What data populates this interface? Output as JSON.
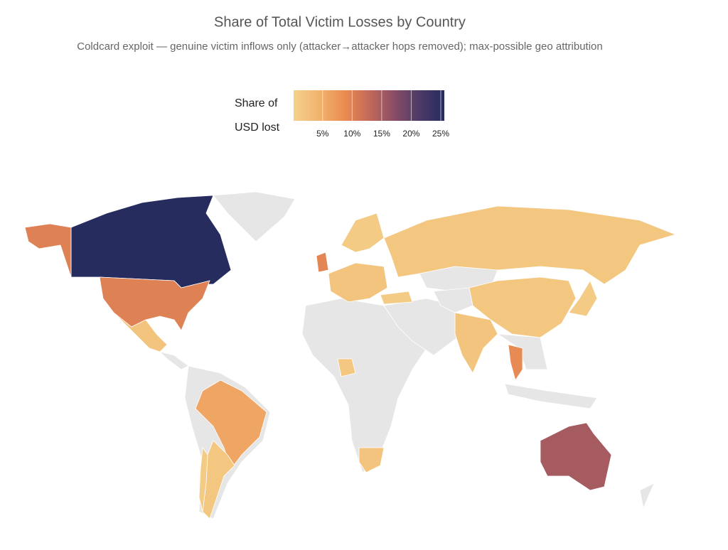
{
  "chart_data": {
    "type": "choropleth",
    "title": "Share of Total Victim Losses by Country",
    "subtitle": "Coldcard exploit — genuine victim inflows only (attacker→attacker hops removed); max-possible geo attribution",
    "colorbar_title": [
      "Share of",
      "USD lost"
    ],
    "values": [
      25.5,
      10,
      15,
      6,
      9,
      9.5,
      2,
      1.5,
      1,
      1.5,
      1.5,
      2,
      1,
      1,
      2,
      1,
      2,
      1.5,
      10
    ],
    "zlim": [
      0.1,
      25.6
    ],
    "zticks": [
      {
        "value": 5,
        "label": "5%"
      },
      {
        "value": 10,
        "label": "10%"
      },
      {
        "value": 15,
        "label": "15%"
      },
      {
        "value": 20,
        "label": "20%"
      },
      {
        "value": 25,
        "label": "25%"
      }
    ],
    "colorscale": [
      "#f5d18b",
      "#f1b46e",
      "#eb8d52",
      "#c36a59",
      "#8a4d67",
      "#4d3a67",
      "#262c5e"
    ],
    "missing_color": "#e6e6e6"
  }
}
